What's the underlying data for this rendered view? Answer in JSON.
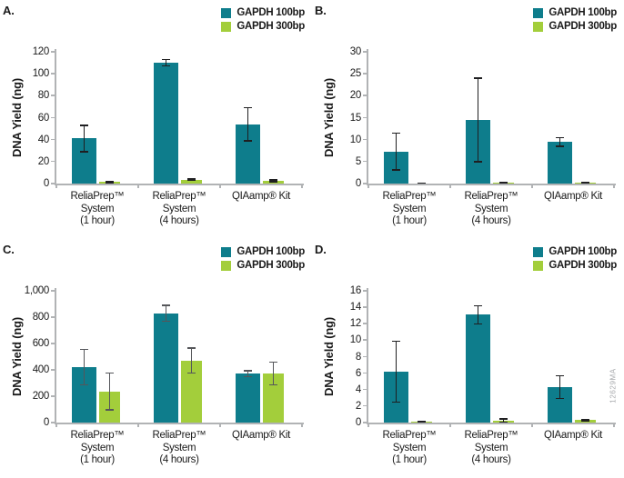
{
  "page": {
    "watermark": "12629MA",
    "background": "#ffffff"
  },
  "colors": {
    "series_100bp": "#0E7D8C",
    "series_300bp": "#A3CE3B",
    "axis": "#b1b3b5",
    "text": "#1a1a1a",
    "watermark": "#a7a9ac"
  },
  "legend": {
    "items": [
      {
        "label": "GAPDH 100bp",
        "color": "#0E7D8C"
      },
      {
        "label": "GAPDH 300bp",
        "color": "#A3CE3B"
      }
    ],
    "position": "top-right"
  },
  "chart_data": [
    {
      "type": "bar",
      "panel_label": "A.",
      "ylabel": "DNA Yield (ng)",
      "xlabel": "",
      "ylim": [
        0,
        120
      ],
      "yticks": [
        0,
        20,
        40,
        60,
        80,
        100,
        120
      ],
      "ytick_labels": [
        "0",
        "20",
        "40",
        "60",
        "80",
        "100",
        "120"
      ],
      "grid": false,
      "legend_position": "top-right",
      "error_color": "#1f1f21",
      "categories": [
        [
          "ReliaPrep™",
          "System",
          "(1 hour)"
        ],
        [
          "ReliaPrep™",
          "System",
          "(4 hours)"
        ],
        [
          "QIAamp® Kit"
        ]
      ],
      "series": [
        {
          "name": "GAPDH 100bp",
          "color": "#0E7D8C",
          "values": [
            41,
            110,
            54
          ],
          "errors": [
            12,
            3,
            15
          ]
        },
        {
          "name": "GAPDH 300bp",
          "color": "#A3CE3B",
          "values": [
            1.5,
            3.5,
            2.5
          ],
          "errors": [
            0.7,
            0.5,
            0.7
          ]
        }
      ]
    },
    {
      "type": "bar",
      "panel_label": "B.",
      "ylabel": "DNA Yield (ng)",
      "xlabel": "",
      "ylim": [
        0,
        30
      ],
      "yticks": [
        0,
        5,
        10,
        15,
        20,
        25,
        30
      ],
      "ytick_labels": [
        "0",
        "5",
        "10",
        "15",
        "20",
        "25",
        "30"
      ],
      "grid": false,
      "legend_position": "top-right",
      "error_color": "#1f1f21",
      "categories": [
        [
          "ReliaPrep™",
          "System",
          "(1 hour)"
        ],
        [
          "ReliaPrep™",
          "System",
          "(4 hours)"
        ],
        [
          "QIAamp® Kit"
        ]
      ],
      "series": [
        {
          "name": "GAPDH 100bp",
          "color": "#0E7D8C",
          "values": [
            7.3,
            14.5,
            9.5
          ],
          "errors": [
            4.2,
            9.5,
            1.0
          ]
        },
        {
          "name": "GAPDH 300bp",
          "color": "#A3CE3B",
          "values": [
            0.05,
            0.2,
            0.2
          ],
          "errors": [
            0.04,
            0.08,
            0.08
          ]
        }
      ]
    },
    {
      "type": "bar",
      "panel_label": "C.",
      "ylabel": "DNA Yield (ng)",
      "xlabel": "",
      "ylim": [
        0,
        1000
      ],
      "yticks": [
        0,
        200,
        400,
        600,
        800,
        1000
      ],
      "ytick_labels": [
        "0",
        "200",
        "400",
        "600",
        "800",
        "1,000"
      ],
      "grid": false,
      "legend_position": "top-right",
      "error_color": "#55565a",
      "categories": [
        [
          "ReliaPrep™",
          "System",
          "(1 hour)"
        ],
        [
          "ReliaPrep™",
          "System",
          "(4 hours)"
        ],
        [
          "QIAamp® Kit"
        ]
      ],
      "series": [
        {
          "name": "GAPDH 100bp",
          "color": "#0E7D8C",
          "values": [
            420,
            830,
            370
          ],
          "errors": [
            135,
            60,
            22
          ]
        },
        {
          "name": "GAPDH 300bp",
          "color": "#A3CE3B",
          "values": [
            235,
            470,
            372
          ],
          "errors": [
            140,
            95,
            87
          ]
        }
      ]
    },
    {
      "type": "bar",
      "panel_label": "D.",
      "ylabel": "DNA Yield (ng)",
      "xlabel": "",
      "ylim": [
        0,
        16
      ],
      "yticks": [
        0,
        2,
        4,
        6,
        8,
        10,
        12,
        14,
        16
      ],
      "ytick_labels": [
        "0",
        "2",
        "4",
        "6",
        "8",
        "10",
        "12",
        "14",
        "16"
      ],
      "grid": false,
      "legend_position": "top-right",
      "error_color": "#1f1f21",
      "categories": [
        [
          "ReliaPrep™",
          "System",
          "(1 hour)"
        ],
        [
          "ReliaPrep™",
          "System",
          "(4 hours)"
        ],
        [
          "QIAamp® Kit"
        ]
      ],
      "series": [
        {
          "name": "GAPDH 100bp",
          "color": "#0E7D8C",
          "values": [
            6.2,
            13.1,
            4.3
          ],
          "errors": [
            3.7,
            1.1,
            1.4
          ]
        },
        {
          "name": "GAPDH 300bp",
          "color": "#A3CE3B",
          "values": [
            0.1,
            0.25,
            0.3
          ],
          "errors": [
            0.06,
            0.18,
            0.08
          ]
        }
      ]
    }
  ]
}
